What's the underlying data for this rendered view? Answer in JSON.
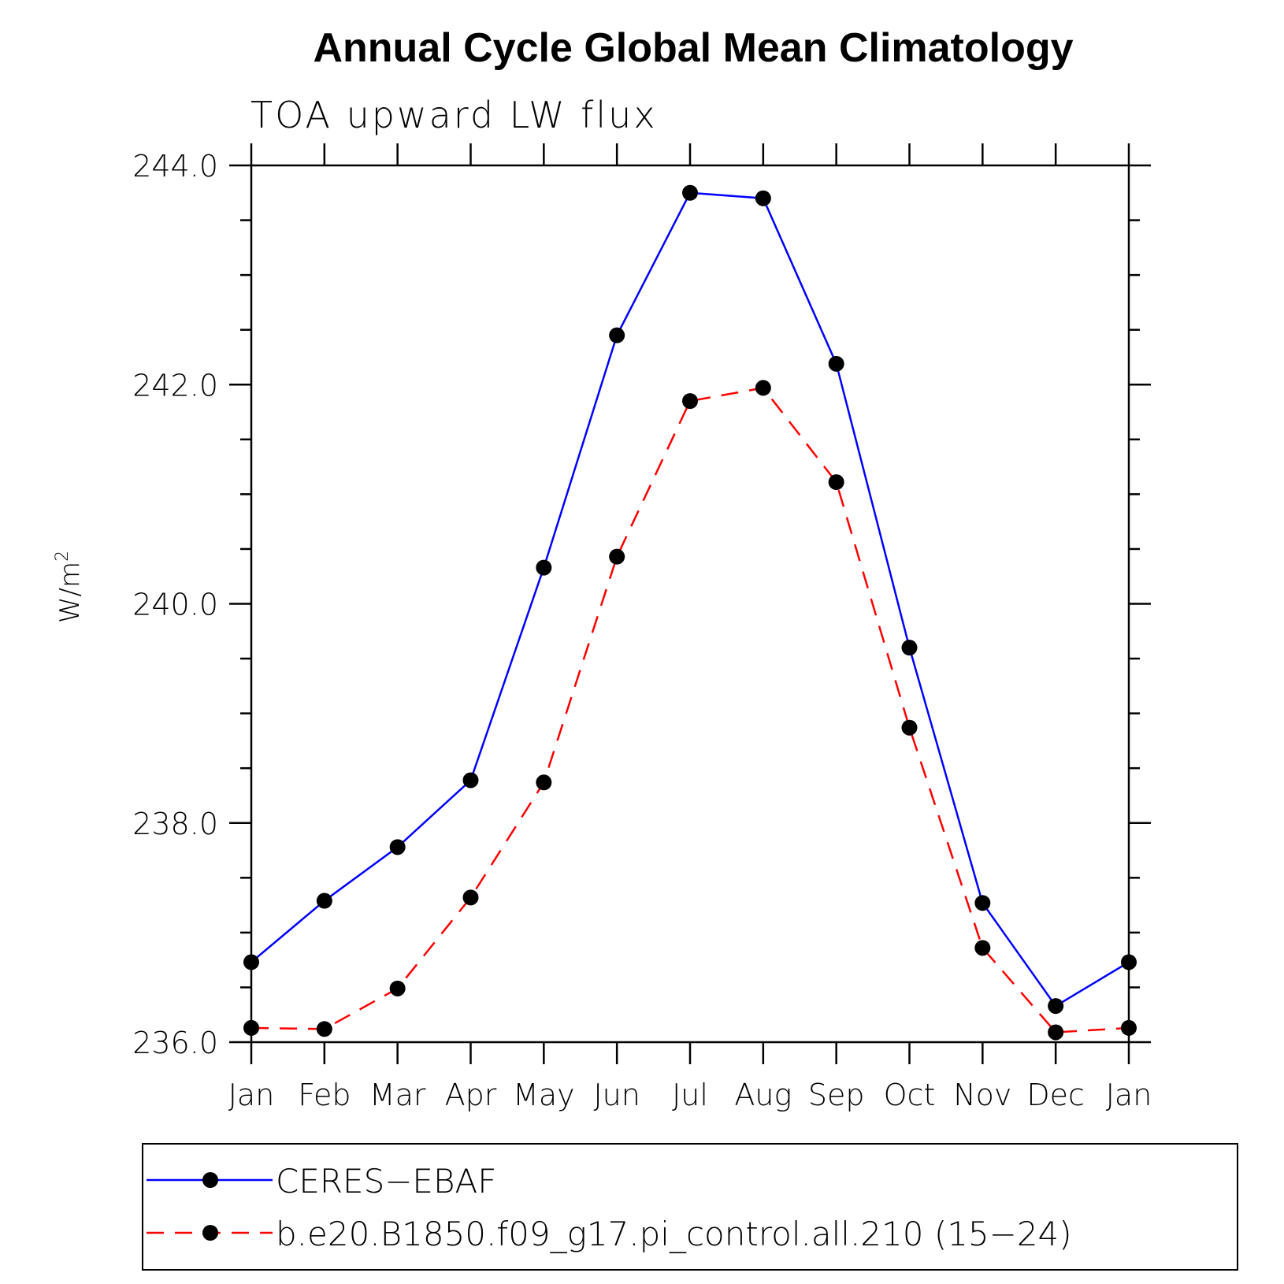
{
  "chart_data": {
    "type": "line",
    "title": "Annual Cycle Global Mean Climatology",
    "subtitle": "TOA upward LW flux",
    "ylabel": "W/m",
    "ylabel_superscript": "2",
    "xlabel": "",
    "categories": [
      "Jan",
      "Feb",
      "Mar",
      "Apr",
      "May",
      "Jun",
      "Jul",
      "Aug",
      "Sep",
      "Oct",
      "Nov",
      "Dec",
      "Jan"
    ],
    "ylim": [
      236.0,
      244.0
    ],
    "yticks": [
      236.0,
      238.0,
      240.0,
      242.0,
      244.0
    ],
    "ytick_labels": [
      "236.0",
      "238.0",
      "240.0",
      "242.0",
      "244.0"
    ],
    "grid": false,
    "legend_position": "bottom",
    "series": [
      {
        "name": "CERES-EBAF",
        "color": "#0000ff",
        "dash": "solid",
        "marker": "filled-circle",
        "values": [
          236.73,
          237.29,
          237.78,
          238.39,
          240.33,
          242.45,
          243.75,
          243.7,
          242.19,
          239.6,
          237.27,
          236.33,
          236.73
        ]
      },
      {
        "name": "b.e20.B1850.f09_g17.pi_control.all.210 (15-24)",
        "color": "#ff0000",
        "dash": "dashed",
        "marker": "filled-circle",
        "values": [
          236.13,
          236.12,
          236.49,
          237.32,
          238.37,
          240.43,
          241.85,
          241.97,
          241.11,
          238.87,
          236.86,
          236.09,
          236.13
        ]
      }
    ],
    "legend_labels": [
      "CERES−EBAF",
      "b.e20.B1850.f09_g17.pi_control.all.210 (15−24)"
    ]
  }
}
